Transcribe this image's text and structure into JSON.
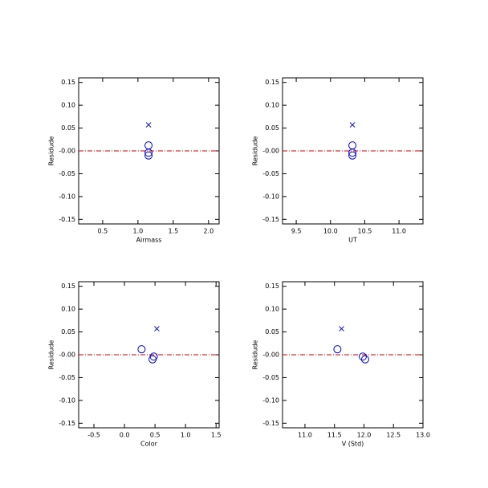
{
  "chart_data": [
    {
      "type": "scatter",
      "xlabel": "Airmass",
      "ylabel": "Residude",
      "xlim": [
        0.16,
        2.15
      ],
      "ylim": [
        -0.16,
        0.16
      ],
      "xticks": [
        0.5,
        {
          "value": 1,
          "label": "1.0"
        },
        1.5,
        {
          "value": 2,
          "label": "2.0"
        }
      ],
      "yticks": [
        0.15,
        {
          "value": 0.1,
          "label": "0.10"
        },
        0.05,
        {
          "value": 0,
          "label": "-0.00"
        },
        -0.05,
        {
          "value": -0.1,
          "label": "-0.10"
        },
        -0.15
      ],
      "reference_line": {
        "value": 0,
        "color": "#cc0000"
      },
      "series": [
        {
          "marker": "circle",
          "color": "#0000cc",
          "x": [
            1.15,
            1.15,
            1.15
          ],
          "values": [
            0.012,
            -0.004,
            -0.01
          ]
        },
        {
          "marker": "cross",
          "color": "#0000cc",
          "x": [
            1.15
          ],
          "values": [
            0.057
          ]
        }
      ]
    },
    {
      "type": "scatter",
      "xlabel": "UT",
      "ylabel": "Residude",
      "xlim": [
        9.3,
        11.35
      ],
      "ylim": [
        -0.16,
        0.16
      ],
      "xticks": [
        9.5,
        {
          "value": 10,
          "label": "10.0"
        },
        10.5,
        {
          "value": 11,
          "label": "11.0"
        }
      ],
      "yticks": [
        0.15,
        {
          "value": 0.1,
          "label": "0.10"
        },
        0.05,
        {
          "value": 0,
          "label": "-0.00"
        },
        -0.05,
        {
          "value": -0.1,
          "label": "-0.10"
        },
        -0.15
      ],
      "reference_line": {
        "value": 0,
        "color": "#cc0000"
      },
      "series": [
        {
          "marker": "circle",
          "color": "#0000cc",
          "x": [
            10.32,
            10.32,
            10.32
          ],
          "values": [
            0.012,
            -0.004,
            -0.01
          ]
        },
        {
          "marker": "cross",
          "color": "#0000cc",
          "x": [
            10.32
          ],
          "values": [
            0.057
          ]
        }
      ]
    },
    {
      "type": "scatter",
      "xlabel": "Color",
      "ylabel": "Residude",
      "xlim": [
        -0.75,
        1.55
      ],
      "ylim": [
        -0.16,
        0.16
      ],
      "xticks": [
        -0.5,
        {
          "value": 0,
          "label": "0.0"
        },
        0.5,
        {
          "value": 1,
          "label": "1.0"
        },
        1.5
      ],
      "yticks": [
        0.15,
        {
          "value": 0.1,
          "label": "0.10"
        },
        0.05,
        {
          "value": 0,
          "label": "-0.00"
        },
        -0.05,
        {
          "value": -0.1,
          "label": "-0.10"
        },
        -0.15
      ],
      "reference_line": {
        "value": 0,
        "color": "#cc0000"
      },
      "series": [
        {
          "marker": "circle",
          "color": "#0000cc",
          "x": [
            0.28,
            0.48,
            0.46
          ],
          "values": [
            0.012,
            -0.004,
            -0.01
          ]
        },
        {
          "marker": "cross",
          "color": "#0000cc",
          "x": [
            0.53
          ],
          "values": [
            0.057
          ]
        }
      ]
    },
    {
      "type": "scatter",
      "xlabel": "V (Std)",
      "ylabel": "Residude",
      "xlim": [
        10.62,
        13.0
      ],
      "ylim": [
        -0.16,
        0.16
      ],
      "xticks": [
        {
          "value": 11,
          "label": "11.0"
        },
        11.5,
        {
          "value": 12,
          "label": "12.0"
        },
        12.5,
        {
          "value": 13,
          "label": "13.0"
        }
      ],
      "yticks": [
        0.15,
        {
          "value": 0.1,
          "label": "0.10"
        },
        0.05,
        {
          "value": 0,
          "label": "-0.00"
        },
        -0.05,
        {
          "value": -0.1,
          "label": "-0.10"
        },
        -0.15
      ],
      "reference_line": {
        "value": 0,
        "color": "#cc0000"
      },
      "series": [
        {
          "marker": "circle",
          "color": "#0000cc",
          "x": [
            11.55,
            11.98,
            12.02
          ],
          "values": [
            0.012,
            -0.004,
            -0.01
          ]
        },
        {
          "marker": "cross",
          "color": "#0000cc",
          "x": [
            11.62
          ],
          "values": [
            0.057
          ]
        }
      ]
    }
  ]
}
